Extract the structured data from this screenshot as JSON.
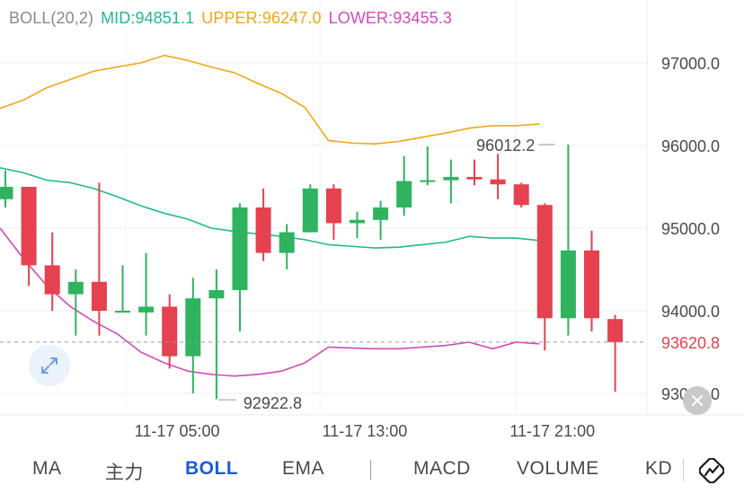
{
  "legend": {
    "title": "BOLL(20,2)",
    "mid": "MID:94851.1",
    "upper": "UPPER:96247.0",
    "lower": "LOWER:93455.3"
  },
  "colors": {
    "mid": "#22b990",
    "upper": "#f0a818",
    "lower": "#d34ab9",
    "up_candle": "#2fb35f",
    "down_candle": "#e5414f",
    "current_price_label": "#e5414f",
    "active_tab": "#1f5bd8"
  },
  "tabs": [
    {
      "label": "MA"
    },
    {
      "label": "主力"
    },
    {
      "label": "BOLL"
    },
    {
      "label": "EMA"
    },
    {
      "label": "MACD"
    },
    {
      "label": "VOLUME"
    },
    {
      "label": "KD"
    }
  ],
  "active_tab": "BOLL",
  "icons": {
    "expand": "expand-arrows-icon",
    "close": "close-icon",
    "chart": "chart-line-icon"
  },
  "chart_data": {
    "type": "candlestick",
    "y_range": [
      92800,
      97600
    ],
    "y_ticks": [
      {
        "value": 97000,
        "label": "97000.0"
      },
      {
        "value": 96000,
        "label": "96000.0"
      },
      {
        "value": 95000,
        "label": "95000.0"
      },
      {
        "value": 94000,
        "label": "94000.0"
      },
      {
        "value": 93000,
        "label": "93000.0"
      }
    ],
    "x_labels": [
      {
        "index": 7.4,
        "label": "11-17 05:00"
      },
      {
        "index": 15.4,
        "label": "11-17 13:00"
      },
      {
        "index": 23.4,
        "label": "11-17 21:00"
      }
    ],
    "current_price": {
      "value": 93620.8,
      "label": "93620.8"
    },
    "annotations": [
      {
        "text": "96012.2",
        "index": 22.5,
        "value": 96012.2,
        "type": "high"
      },
      {
        "text": "92922.8",
        "index": 9,
        "value": 92922.8,
        "type": "low"
      }
    ],
    "candles": [
      {
        "o": 95350,
        "h": 95700,
        "l": 95250,
        "c": 95500
      },
      {
        "o": 95500,
        "h": 95500,
        "l": 94300,
        "c": 94550
      },
      {
        "o": 94550,
        "h": 94950,
        "l": 94000,
        "c": 94200
      },
      {
        "o": 94200,
        "h": 94500,
        "l": 93700,
        "c": 94350
      },
      {
        "o": 94350,
        "h": 95550,
        "l": 93700,
        "c": 94000
      },
      {
        "o": 94000,
        "h": 94550,
        "l": 94000,
        "c": 94000
      },
      {
        "o": 93980,
        "h": 94700,
        "l": 93700,
        "c": 94050
      },
      {
        "o": 94050,
        "h": 94200,
        "l": 93300,
        "c": 93450
      },
      {
        "o": 93450,
        "h": 94400,
        "l": 93000,
        "c": 94150
      },
      {
        "o": 94150,
        "h": 94500,
        "l": 92930,
        "c": 94250
      },
      {
        "o": 94250,
        "h": 95300,
        "l": 93750,
        "c": 95250
      },
      {
        "o": 95250,
        "h": 95480,
        "l": 94600,
        "c": 94700
      },
      {
        "o": 94700,
        "h": 95050,
        "l": 94500,
        "c": 94950
      },
      {
        "o": 94950,
        "h": 95530,
        "l": 94950,
        "c": 95480
      },
      {
        "o": 95480,
        "h": 95530,
        "l": 94860,
        "c": 95060
      },
      {
        "o": 95060,
        "h": 95200,
        "l": 94880,
        "c": 95100
      },
      {
        "o": 95100,
        "h": 95330,
        "l": 94860,
        "c": 95250
      },
      {
        "o": 95250,
        "h": 95870,
        "l": 95150,
        "c": 95570
      },
      {
        "o": 95570,
        "h": 95990,
        "l": 95520,
        "c": 95580
      },
      {
        "o": 95580,
        "h": 95830,
        "l": 95300,
        "c": 95620
      },
      {
        "o": 95620,
        "h": 95830,
        "l": 95520,
        "c": 95590
      },
      {
        "o": 95590,
        "h": 95900,
        "l": 95350,
        "c": 95530
      },
      {
        "o": 95530,
        "h": 95550,
        "l": 95250,
        "c": 95280
      },
      {
        "o": 95280,
        "h": 95300,
        "l": 93520,
        "c": 93910
      },
      {
        "o": 93910,
        "h": 96012,
        "l": 93700,
        "c": 94730
      },
      {
        "o": 94730,
        "h": 94970,
        "l": 93750,
        "c": 93910
      },
      {
        "o": 93900,
        "h": 93950,
        "l": 93020,
        "c": 93621
      }
    ],
    "series": [
      {
        "values": [
          96450,
          96550,
          96700,
          96800,
          96900,
          96950,
          97000,
          97090,
          97030,
          96950,
          96880,
          96750,
          96630,
          96460,
          96060,
          96030,
          96020,
          96050,
          96100,
          96150,
          96210,
          96240,
          96240,
          96260
        ]
      },
      {
        "values": [
          95730,
          95670,
          95580,
          95550,
          95480,
          95380,
          95270,
          95180,
          95110,
          95000,
          94960,
          94930,
          94900,
          94860,
          94800,
          94780,
          94760,
          94770,
          94800,
          94830,
          94900,
          94880,
          94880,
          94850
        ]
      },
      {
        "values": [
          95000,
          94630,
          94300,
          94050,
          93870,
          93720,
          93500,
          93370,
          93270,
          93230,
          93210,
          93230,
          93270,
          93370,
          93560,
          93550,
          93540,
          93540,
          93560,
          93580,
          93620,
          93540,
          93620,
          93600
        ]
      }
    ]
  }
}
